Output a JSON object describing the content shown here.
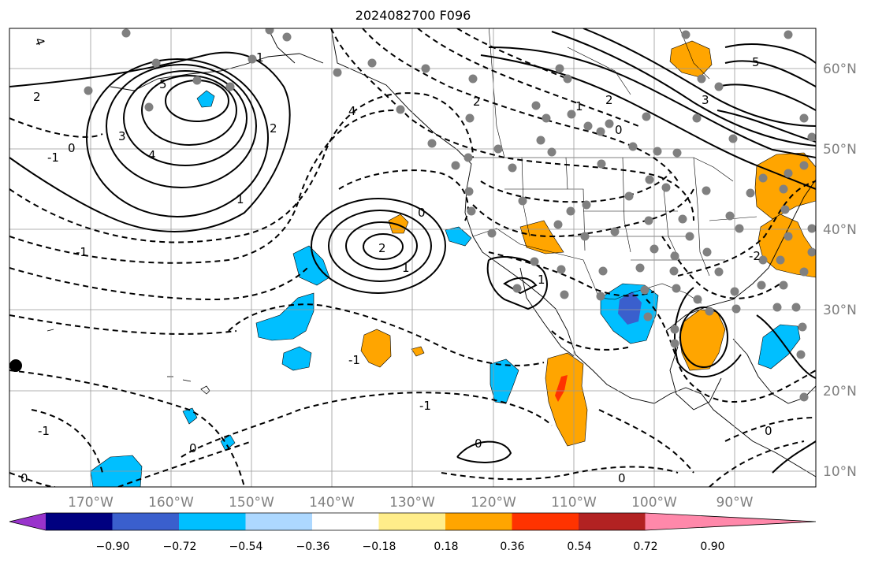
{
  "title": "2024082700 F096",
  "lon_labels": [
    "170°W",
    "160°W",
    "150°W",
    "140°W",
    "130°W",
    "120°W",
    "110°W",
    "100°W",
    "90°W"
  ],
  "lat_labels": [
    "60°N",
    "50°N",
    "40°N",
    "30°N",
    "20°N",
    "10°N"
  ],
  "colorbar": {
    "colors": [
      "#9933cc",
      "#000080",
      "#3a5fcd",
      "#00bfff",
      "#add8ff",
      "#ffffff",
      "#ffed8a",
      "#ffa500",
      "#ff3300",
      "#b22222",
      "#ff88aa"
    ],
    "tick_labels": [
      "−0.90",
      "−0.72",
      "−0.54",
      "−0.36",
      "−0.18",
      "0.18",
      "0.36",
      "0.54",
      "0.72",
      "0.90"
    ],
    "extend": "both"
  },
  "contour_labels": [
    "4",
    "2",
    "5",
    "3",
    "4",
    "1",
    "0",
    "-1",
    "2",
    "-1",
    "4",
    "2",
    "1",
    "0",
    "2",
    "5",
    "3",
    "1",
    "0",
    "-1",
    "1",
    "2",
    "0",
    "0",
    "-1",
    "-1",
    "0",
    "0",
    "-2",
    "0",
    "1"
  ],
  "grid": true
}
